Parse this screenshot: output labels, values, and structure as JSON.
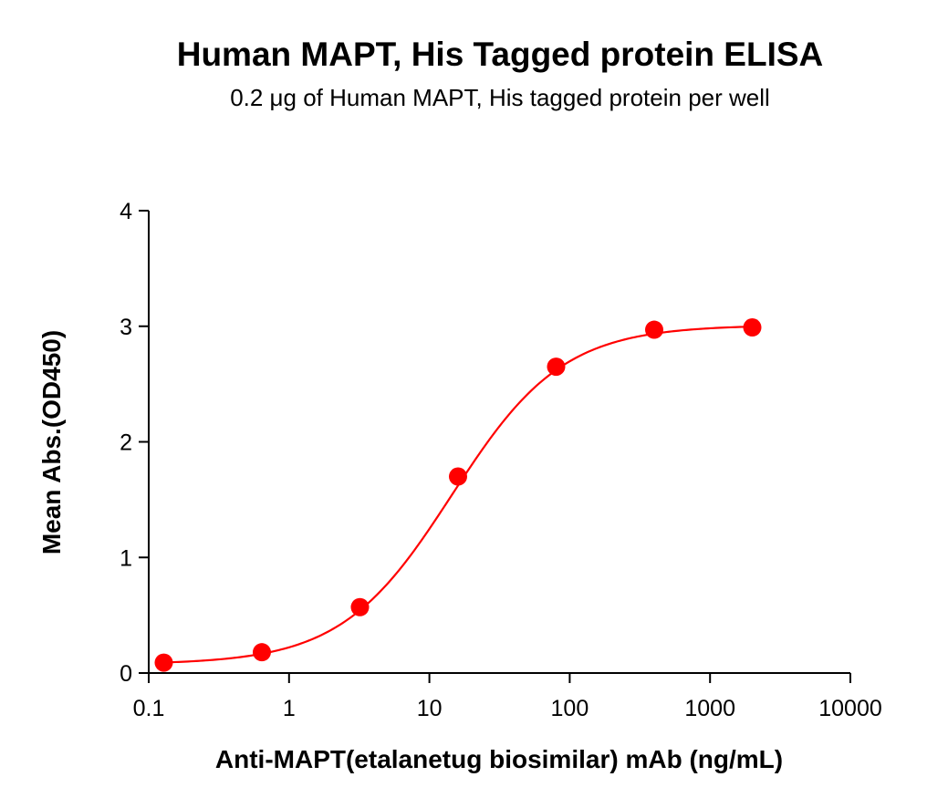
{
  "chart_data": {
    "type": "scatter",
    "title": "Human MAPT, His Tagged protein ELISA",
    "subtitle": "0.2 μg of Human MAPT, His tagged protein per well",
    "xlabel": "Anti-MAPT(etalanetug biosimilar) mAb (ng/mL)",
    "ylabel": "Mean Abs.(OD450)",
    "x_scale": "log",
    "xlim": [
      0.1,
      10000
    ],
    "ylim": [
      0,
      4
    ],
    "x_ticks": [
      0.1,
      1,
      10,
      100,
      1000,
      10000
    ],
    "x_tick_labels": [
      "0.1",
      "1",
      "10",
      "100",
      "1000",
      "10000"
    ],
    "y_ticks": [
      0,
      1,
      2,
      3,
      4
    ],
    "y_tick_labels": [
      "0",
      "1",
      "2",
      "3",
      "4"
    ],
    "grid": false,
    "color": "#ff0000",
    "series": [
      {
        "x": [
          0.128,
          0.64,
          3.2,
          16,
          80,
          400,
          2000
        ],
        "y": [
          0.09,
          0.18,
          0.57,
          1.7,
          2.65,
          2.97,
          2.99
        ],
        "fit": "4PL sigmoid curve"
      }
    ]
  }
}
